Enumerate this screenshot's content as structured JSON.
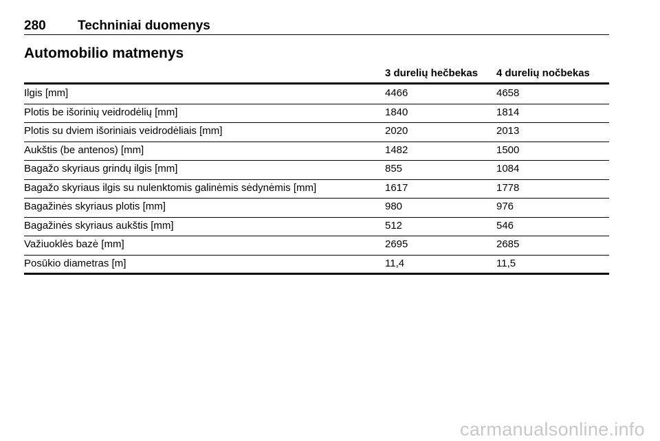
{
  "header": {
    "page_number": "280",
    "title": "Techniniai duomenys"
  },
  "section": {
    "title": "Automobilio matmenys"
  },
  "table": {
    "columns": [
      "3 durelių hečbekas",
      "4 durelių nočbekas"
    ],
    "rows": [
      [
        "Ilgis [mm]",
        "4466",
        "4658"
      ],
      [
        "Plotis be išorinių veidrodėlių [mm]",
        "1840",
        "1814"
      ],
      [
        "Plotis su dviem išoriniais veidrodėliais [mm]",
        "2020",
        "2013"
      ],
      [
        "Aukštis (be antenos) [mm]",
        "1482",
        "1500"
      ],
      [
        "Bagažo skyriaus grindų ilgis [mm]",
        "855",
        "1084"
      ],
      [
        "Bagažo skyriaus ilgis su nulenktomis galinėmis sėdynėmis [mm]",
        "1617",
        "1778"
      ],
      [
        "Bagažinės skyriaus plotis [mm]",
        "980",
        "976"
      ],
      [
        "Bagažinės skyriaus aukštis [mm]",
        "512",
        "546"
      ],
      [
        "Važiuoklės bazė [mm]",
        "2695",
        "2685"
      ],
      [
        "Posūkio diametras [m]",
        "11,4",
        "11,5"
      ]
    ]
  },
  "watermark": "carmanualsonline.info"
}
